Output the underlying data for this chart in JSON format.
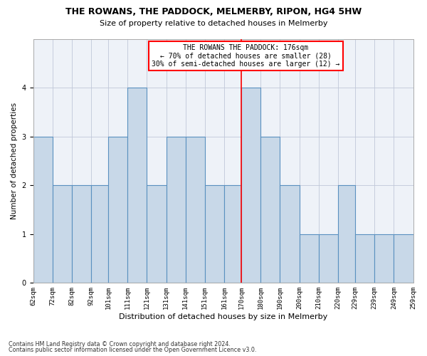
{
  "title1": "THE ROWANS, THE PADDOCK, MELMERBY, RIPON, HG4 5HW",
  "title2": "Size of property relative to detached houses in Melmerby",
  "xlabel": "Distribution of detached houses by size in Melmerby",
  "ylabel": "Number of detached properties",
  "footer1": "Contains HM Land Registry data © Crown copyright and database right 2024.",
  "footer2": "Contains public sector information licensed under the Open Government Licence v3.0.",
  "bar_left_edges": [
    62,
    72,
    82,
    92,
    101,
    111,
    121,
    131,
    141,
    151,
    161,
    170,
    180,
    190,
    200,
    210,
    220,
    229,
    239,
    249
  ],
  "bar_widths": [
    10,
    10,
    10,
    9,
    10,
    10,
    10,
    10,
    10,
    10,
    9,
    10,
    10,
    10,
    10,
    10,
    9,
    10,
    10,
    10
  ],
  "bar_heights": [
    3,
    2,
    2,
    2,
    3,
    4,
    2,
    3,
    3,
    2,
    2,
    4,
    3,
    2,
    1,
    1,
    2,
    1,
    1,
    1
  ],
  "tick_labels": [
    "62sqm",
    "72sqm",
    "82sqm",
    "92sqm",
    "101sqm",
    "111sqm",
    "121sqm",
    "131sqm",
    "141sqm",
    "151sqm",
    "161sqm",
    "170sqm",
    "180sqm",
    "190sqm",
    "200sqm",
    "210sqm",
    "220sqm",
    "229sqm",
    "239sqm",
    "249sqm",
    "259sqm"
  ],
  "tick_positions": [
    62,
    72,
    82,
    92,
    101,
    111,
    121,
    131,
    141,
    151,
    161,
    170,
    180,
    190,
    200,
    210,
    220,
    229,
    239,
    249,
    259
  ],
  "bar_color": "#c8d8e8",
  "bar_edge_color": "#5a90c0",
  "subject_line_x": 170,
  "annotation_title": "THE ROWANS THE PADDOCK: 176sqm",
  "annotation_line2": "← 70% of detached houses are smaller (28)",
  "annotation_line3": "30% of semi-detached houses are larger (12) →",
  "ylim": [
    0,
    5
  ],
  "xlim": [
    62,
    259
  ],
  "grid_color": "#c0c8d8",
  "bg_color": "#eef2f8"
}
